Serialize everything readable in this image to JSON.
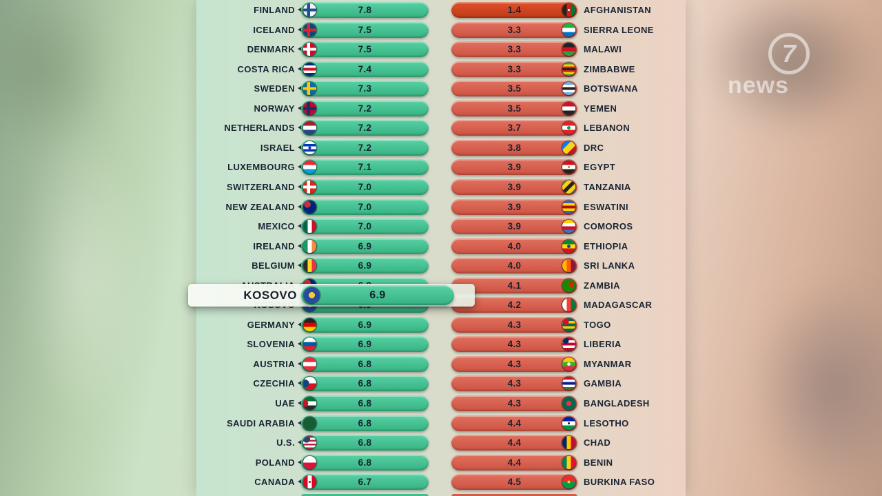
{
  "watermark": {
    "logo_glyph": "7",
    "news_label": "news"
  },
  "colors": {
    "green_bar_top": "#58d1a4",
    "green_bar_bottom": "#36b282",
    "red_bar_top": "#e1715f",
    "red_bar_bottom": "#cd5242",
    "intense_red_top": "#e0512c",
    "intense_red_bottom": "#bf3a17",
    "text": "#1a2433",
    "panel_left": "#c6e5d0",
    "panel_right": "#edd2c3"
  },
  "chart_data": {
    "type": "bar",
    "highlight": {
      "country": "KOSOVO",
      "value": "6.9"
    },
    "left_series": {
      "name": "highest-scores",
      "rows": [
        {
          "country": "FINLAND",
          "value": "7.8",
          "flag": {
            "t": "solid",
            "c": [
              "#f2f5f8"
            ],
            "cross": "#1d4f91"
          }
        },
        {
          "country": "ICELAND",
          "value": "7.5",
          "flag": {
            "t": "solid",
            "c": [
              "#11457e"
            ],
            "cross": "#d7282f"
          }
        },
        {
          "country": "DENMARK",
          "value": "7.5",
          "flag": {
            "t": "solid",
            "c": [
              "#c8102e"
            ],
            "cross": "#ffffff"
          }
        },
        {
          "country": "COSTA RICA",
          "value": "7.4",
          "flag": {
            "t": "h",
            "c": [
              "#002b7f",
              "#ffffff",
              "#ce1126",
              "#ffffff",
              "#002b7f"
            ]
          }
        },
        {
          "country": "SWEDEN",
          "value": "7.3",
          "flag": {
            "t": "solid",
            "c": [
              "#0d6aa8"
            ],
            "cross": "#fecc02"
          }
        },
        {
          "country": "NORWAY",
          "value": "7.2",
          "flag": {
            "t": "solid",
            "c": [
              "#ba0c2f"
            ],
            "cross": "#1b2a69"
          }
        },
        {
          "country": "NETHERLANDS",
          "value": "7.2",
          "flag": {
            "t": "h",
            "c": [
              "#ae1c28",
              "#ffffff",
              "#21468b"
            ]
          }
        },
        {
          "country": "ISRAEL",
          "value": "7.2",
          "flag": {
            "t": "h",
            "c": [
              "#ffffff",
              "#0038b8",
              "#ffffff",
              "#0038b8",
              "#ffffff"
            ],
            "dot": {
              "c": "#0038b8",
              "r": "15%"
            }
          }
        },
        {
          "country": "LUXEMBOURG",
          "value": "7.1",
          "flag": {
            "t": "h",
            "c": [
              "#ed2939",
              "#ffffff",
              "#00a1de"
            ]
          }
        },
        {
          "country": "SWITZERLAND",
          "value": "7.0",
          "flag": {
            "t": "solid",
            "c": [
              "#da291c"
            ],
            "cross": "#ffffff"
          }
        },
        {
          "country": "NEW ZEALAND",
          "value": "7.0",
          "flag": {
            "t": "solid",
            "c": [
              "#00247d"
            ],
            "dot": {
              "c": "#cc2b3d",
              "x": "32%",
              "y": "30%",
              "r": "26%"
            }
          }
        },
        {
          "country": "MEXICO",
          "value": "7.0",
          "flag": {
            "t": "v",
            "c": [
              "#006847",
              "#ffffff",
              "#ce1126"
            ]
          }
        },
        {
          "country": "IRELAND",
          "value": "6.9",
          "flag": {
            "t": "v",
            "c": [
              "#169b62",
              "#ffffff",
              "#ff883e"
            ]
          }
        },
        {
          "country": "BELGIUM",
          "value": "6.9",
          "flag": {
            "t": "v",
            "c": [
              "#2d2926",
              "#fdda24",
              "#ef3340"
            ]
          }
        },
        {
          "country": "AUSTRALIA",
          "value": "6.9",
          "flag": {
            "t": "solid",
            "c": [
              "#00247d"
            ],
            "dot": {
              "c": "#cc2b3d",
              "x": "32%",
              "y": "30%",
              "r": "26%"
            }
          }
        },
        {
          "country": "KOSOVO",
          "value": "6.9",
          "flag": {
            "t": "solid",
            "c": [
              "#244aa5"
            ],
            "dot": {
              "c": "#f4cf2c",
              "r": "28%"
            }
          }
        },
        {
          "country": "GERMANY",
          "value": "6.9",
          "flag": {
            "t": "h",
            "c": [
              "#26211e",
              "#dd0000",
              "#ffce00"
            ]
          }
        },
        {
          "country": "SLOVENIA",
          "value": "6.9",
          "flag": {
            "t": "h",
            "c": [
              "#ffffff",
              "#005da4",
              "#ed1c24"
            ]
          }
        },
        {
          "country": "AUSTRIA",
          "value": "6.8",
          "flag": {
            "t": "h",
            "c": [
              "#ed2939",
              "#ffffff",
              "#ed2939"
            ]
          }
        },
        {
          "country": "CZECHIA",
          "value": "6.8",
          "flag": {
            "t": "h",
            "c": [
              "#ffffff",
              "#d7141a"
            ],
            "dot": {
              "c": "#11457e",
              "x": "16%",
              "y": "50%",
              "r": "30%"
            }
          }
        },
        {
          "country": "UAE",
          "value": "6.8",
          "flag": {
            "t": "h",
            "c": [
              "#00732f",
              "#ffffff",
              "#2d2926"
            ],
            "dot": {
              "c": "#ce1126",
              "x": "12%",
              "y": "50%",
              "r": "26%"
            }
          }
        },
        {
          "country": "SAUDI ARABIA",
          "value": "6.8",
          "flag": {
            "t": "solid",
            "c": [
              "#165d31"
            ]
          }
        },
        {
          "country": "U.S.",
          "value": "6.8",
          "flag": {
            "t": "h",
            "c": [
              "#b22234",
              "#ffffff",
              "#b22234",
              "#ffffff",
              "#b22234",
              "#ffffff",
              "#b22234"
            ],
            "dot": {
              "c": "#3c3b6e",
              "x": "26%",
              "y": "24%",
              "r": "25%"
            }
          }
        },
        {
          "country": "POLAND",
          "value": "6.8",
          "flag": {
            "t": "h",
            "c": [
              "#ffffff",
              "#dc143c"
            ]
          }
        },
        {
          "country": "CANADA",
          "value": "6.7",
          "flag": {
            "t": "v",
            "c": [
              "#d80621",
              "#ffffff",
              "#d80621"
            ],
            "dot": {
              "c": "#d80621",
              "r": "12%"
            }
          }
        }
      ]
    },
    "right_series": {
      "name": "lowest-scores",
      "rows": [
        {
          "country": "AFGHANISTAN",
          "value": "1.4",
          "intense": true,
          "flag": {
            "t": "v",
            "c": [
              "#26211e",
              "#d32011",
              "#007a36"
            ],
            "dot": {
              "c": "#f5f5f5",
              "r": "13%"
            }
          }
        },
        {
          "country": "SIERRA LEONE",
          "value": "3.3",
          "flag": {
            "t": "h",
            "c": [
              "#1eb53a",
              "#ffffff",
              "#0072c6"
            ]
          }
        },
        {
          "country": "MALAWI",
          "value": "3.3",
          "flag": {
            "t": "h",
            "c": [
              "#26211e",
              "#ce1126",
              "#339e35"
            ]
          }
        },
        {
          "country": "ZIMBABWE",
          "value": "3.3",
          "flag": {
            "t": "h",
            "c": [
              "#319e45",
              "#ffd200",
              "#de2010",
              "#26211e",
              "#de2010",
              "#ffd200",
              "#319e45"
            ]
          }
        },
        {
          "country": "BOTSWANA",
          "value": "3.5",
          "flag": {
            "t": "h",
            "c": [
              "#75aadb",
              "#ffffff",
              "#26211e",
              "#ffffff",
              "#75aadb"
            ]
          }
        },
        {
          "country": "YEMEN",
          "value": "3.5",
          "flag": {
            "t": "h",
            "c": [
              "#ce1126",
              "#ffffff",
              "#26211e"
            ]
          }
        },
        {
          "country": "LEBANON",
          "value": "3.7",
          "flag": {
            "t": "h",
            "c": [
              "#ed1c24",
              "#ffffff",
              "#ed1c24"
            ],
            "dot": {
              "c": "#00a651",
              "r": "18%"
            }
          }
        },
        {
          "country": "DRC",
          "value": "3.8",
          "flag": {
            "t": "diag",
            "c": [
              "#007fff",
              "#f7d618",
              "#ce1021"
            ]
          }
        },
        {
          "country": "EGYPT",
          "value": "3.9",
          "flag": {
            "t": "h",
            "c": [
              "#ce1126",
              "#ffffff",
              "#26211e"
            ],
            "dot": {
              "c": "#c09300",
              "r": "13%"
            }
          }
        },
        {
          "country": "TANZANIA",
          "value": "3.9",
          "flag": {
            "t": "diag",
            "c": [
              "#1eb53a",
              "#fbd116",
              "#26211e",
              "#fbd116",
              "#00a3dd"
            ]
          }
        },
        {
          "country": "ESWATINI",
          "value": "3.9",
          "flag": {
            "t": "h",
            "c": [
              "#3e5eb9",
              "#ffd900",
              "#b10c0c",
              "#ffd900",
              "#3e5eb9"
            ]
          }
        },
        {
          "country": "COMOROS",
          "value": "3.9",
          "flag": {
            "t": "h",
            "c": [
              "#ffd100",
              "#ffffff",
              "#ce1126",
              "#3a75c4"
            ]
          }
        },
        {
          "country": "ETHIOPIA",
          "value": "4.0",
          "flag": {
            "t": "h",
            "c": [
              "#078930",
              "#fcdd09",
              "#da121a"
            ],
            "dot": {
              "c": "#0f47af",
              "r": "19%"
            }
          }
        },
        {
          "country": "SRI LANKA",
          "value": "4.0",
          "flag": {
            "t": "v",
            "c": [
              "#ffb700",
              "#ff5b00",
              "#8d153a"
            ]
          }
        },
        {
          "country": "ZAMBIA",
          "value": "4.1",
          "flag": {
            "t": "solid",
            "c": [
              "#198a00"
            ],
            "dot": {
              "c": "#de2010",
              "x": "70%",
              "y": "42%",
              "r": "22%"
            }
          }
        },
        {
          "country": "MADAGASCAR",
          "value": "4.2",
          "flag": {
            "t": "v",
            "c": [
              "#ffffff",
              "#fc3d32",
              "#007e3a"
            ]
          }
        },
        {
          "country": "TOGO",
          "value": "4.3",
          "flag": {
            "t": "h",
            "c": [
              "#006a4e",
              "#ffce00",
              "#006a4e",
              "#ffce00",
              "#006a4e"
            ],
            "dot": {
              "c": "#d21034",
              "x": "26%",
              "y": "26%",
              "r": "24%"
            }
          }
        },
        {
          "country": "LIBERIA",
          "value": "4.3",
          "flag": {
            "t": "h",
            "c": [
              "#bf0a30",
              "#ffffff",
              "#bf0a30",
              "#ffffff",
              "#bf0a30"
            ],
            "dot": {
              "c": "#002868",
              "x": "26%",
              "y": "24%",
              "r": "22%"
            }
          }
        },
        {
          "country": "MYANMAR",
          "value": "4.3",
          "flag": {
            "t": "h",
            "c": [
              "#fecb00",
              "#34b233",
              "#ea2839"
            ],
            "dot": {
              "c": "#ffffff",
              "r": "17%"
            }
          }
        },
        {
          "country": "GAMBIA",
          "value": "4.3",
          "flag": {
            "t": "h",
            "c": [
              "#ce1126",
              "#ffffff",
              "#0c1c8c",
              "#ffffff",
              "#3a7728"
            ]
          }
        },
        {
          "country": "BANGLADESH",
          "value": "4.3",
          "flag": {
            "t": "solid",
            "c": [
              "#006a4e"
            ],
            "dot": {
              "c": "#f42a41",
              "r": "28%"
            }
          }
        },
        {
          "country": "LESOTHO",
          "value": "4.4",
          "flag": {
            "t": "h",
            "c": [
              "#00209f",
              "#ffffff",
              "#009543"
            ],
            "dot": {
              "c": "#26211e",
              "r": "13%"
            }
          }
        },
        {
          "country": "CHAD",
          "value": "4.4",
          "flag": {
            "t": "v",
            "c": [
              "#002664",
              "#fecb00",
              "#c60c30"
            ]
          }
        },
        {
          "country": "BENIN",
          "value": "4.4",
          "flag": {
            "t": "v",
            "c": [
              "#008751",
              "#fcd116",
              "#e8112d"
            ]
          }
        },
        {
          "country": "BURKINA FASO",
          "value": "4.5",
          "flag": {
            "t": "h",
            "c": [
              "#ef2b2d",
              "#009e49"
            ],
            "dot": {
              "c": "#fcd116",
              "r": "15%"
            }
          }
        }
      ]
    }
  }
}
